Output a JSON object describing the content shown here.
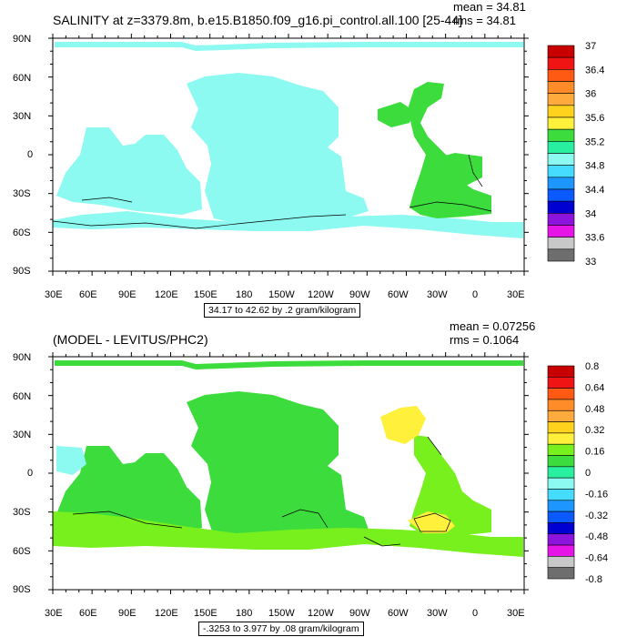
{
  "panels": [
    {
      "title": "SALINITY at z=3379.8m, b.e15.B1850.f09_g16.pi_control.all.100 [25-44]",
      "mean_text": "mean = 34.81",
      "rms_text": "rms = 34.81",
      "range_text": "34.17 to 42.62 by .2 gram/kilogram",
      "ocean_color": "#8cfaf0",
      "atlantic_color": "#3cdc3c",
      "legend_labels": [
        "37",
        "36.4",
        "36",
        "35.6",
        "35.2",
        "34.8",
        "34.4",
        "34",
        "33.6",
        "33"
      ],
      "legend_colors": [
        "#c80000",
        "#f01414",
        "#ff5a14",
        "#ff8c28",
        "#ffaa3c",
        "#ffd21e",
        "#fff03c",
        "#3cdc3c",
        "#28f0a0",
        "#8cfaf0",
        "#46dcff",
        "#1e96ff",
        "#0a5aff",
        "#0000d2",
        "#8c14dc",
        "#e614e6",
        "#c8c8c8",
        "#6e6e6e"
      ]
    },
    {
      "title": "(MODEL - LEVITUS/PHC2)",
      "mean_text": "mean = 0.07256",
      "rms_text": "rms = 0.1064",
      "range_text": "-.3253 to 3.977 by .08 gram/kilogram",
      "ocean_color": "#3cdc3c",
      "atlantic_color": "#fff03c",
      "legend_labels": [
        "0.8",
        "0.64",
        "0.48",
        "0.32",
        "0.16",
        "0",
        "-0.16",
        "-0.32",
        "-0.48",
        "-0.64",
        "-0.8"
      ],
      "legend_colors": [
        "#c80000",
        "#f01414",
        "#ff5a14",
        "#ff8c28",
        "#ffaa3c",
        "#ffd21e",
        "#fff03c",
        "#78f01e",
        "#3cdc3c",
        "#28f0a0",
        "#8cfaf0",
        "#46dcff",
        "#1e96ff",
        "#0a5aff",
        "#0000d2",
        "#8c14dc",
        "#e614e6",
        "#c8c8c8",
        "#6e6e6e"
      ]
    }
  ],
  "lat_labels": [
    "90N",
    "60N",
    "30N",
    "0",
    "30S",
    "60S",
    "90S"
  ],
  "lon_labels": [
    "30E",
    "60E",
    "90E",
    "120E",
    "150E",
    "180",
    "150W",
    "120W",
    "90W",
    "60W",
    "30W",
    "0",
    "30E"
  ]
}
